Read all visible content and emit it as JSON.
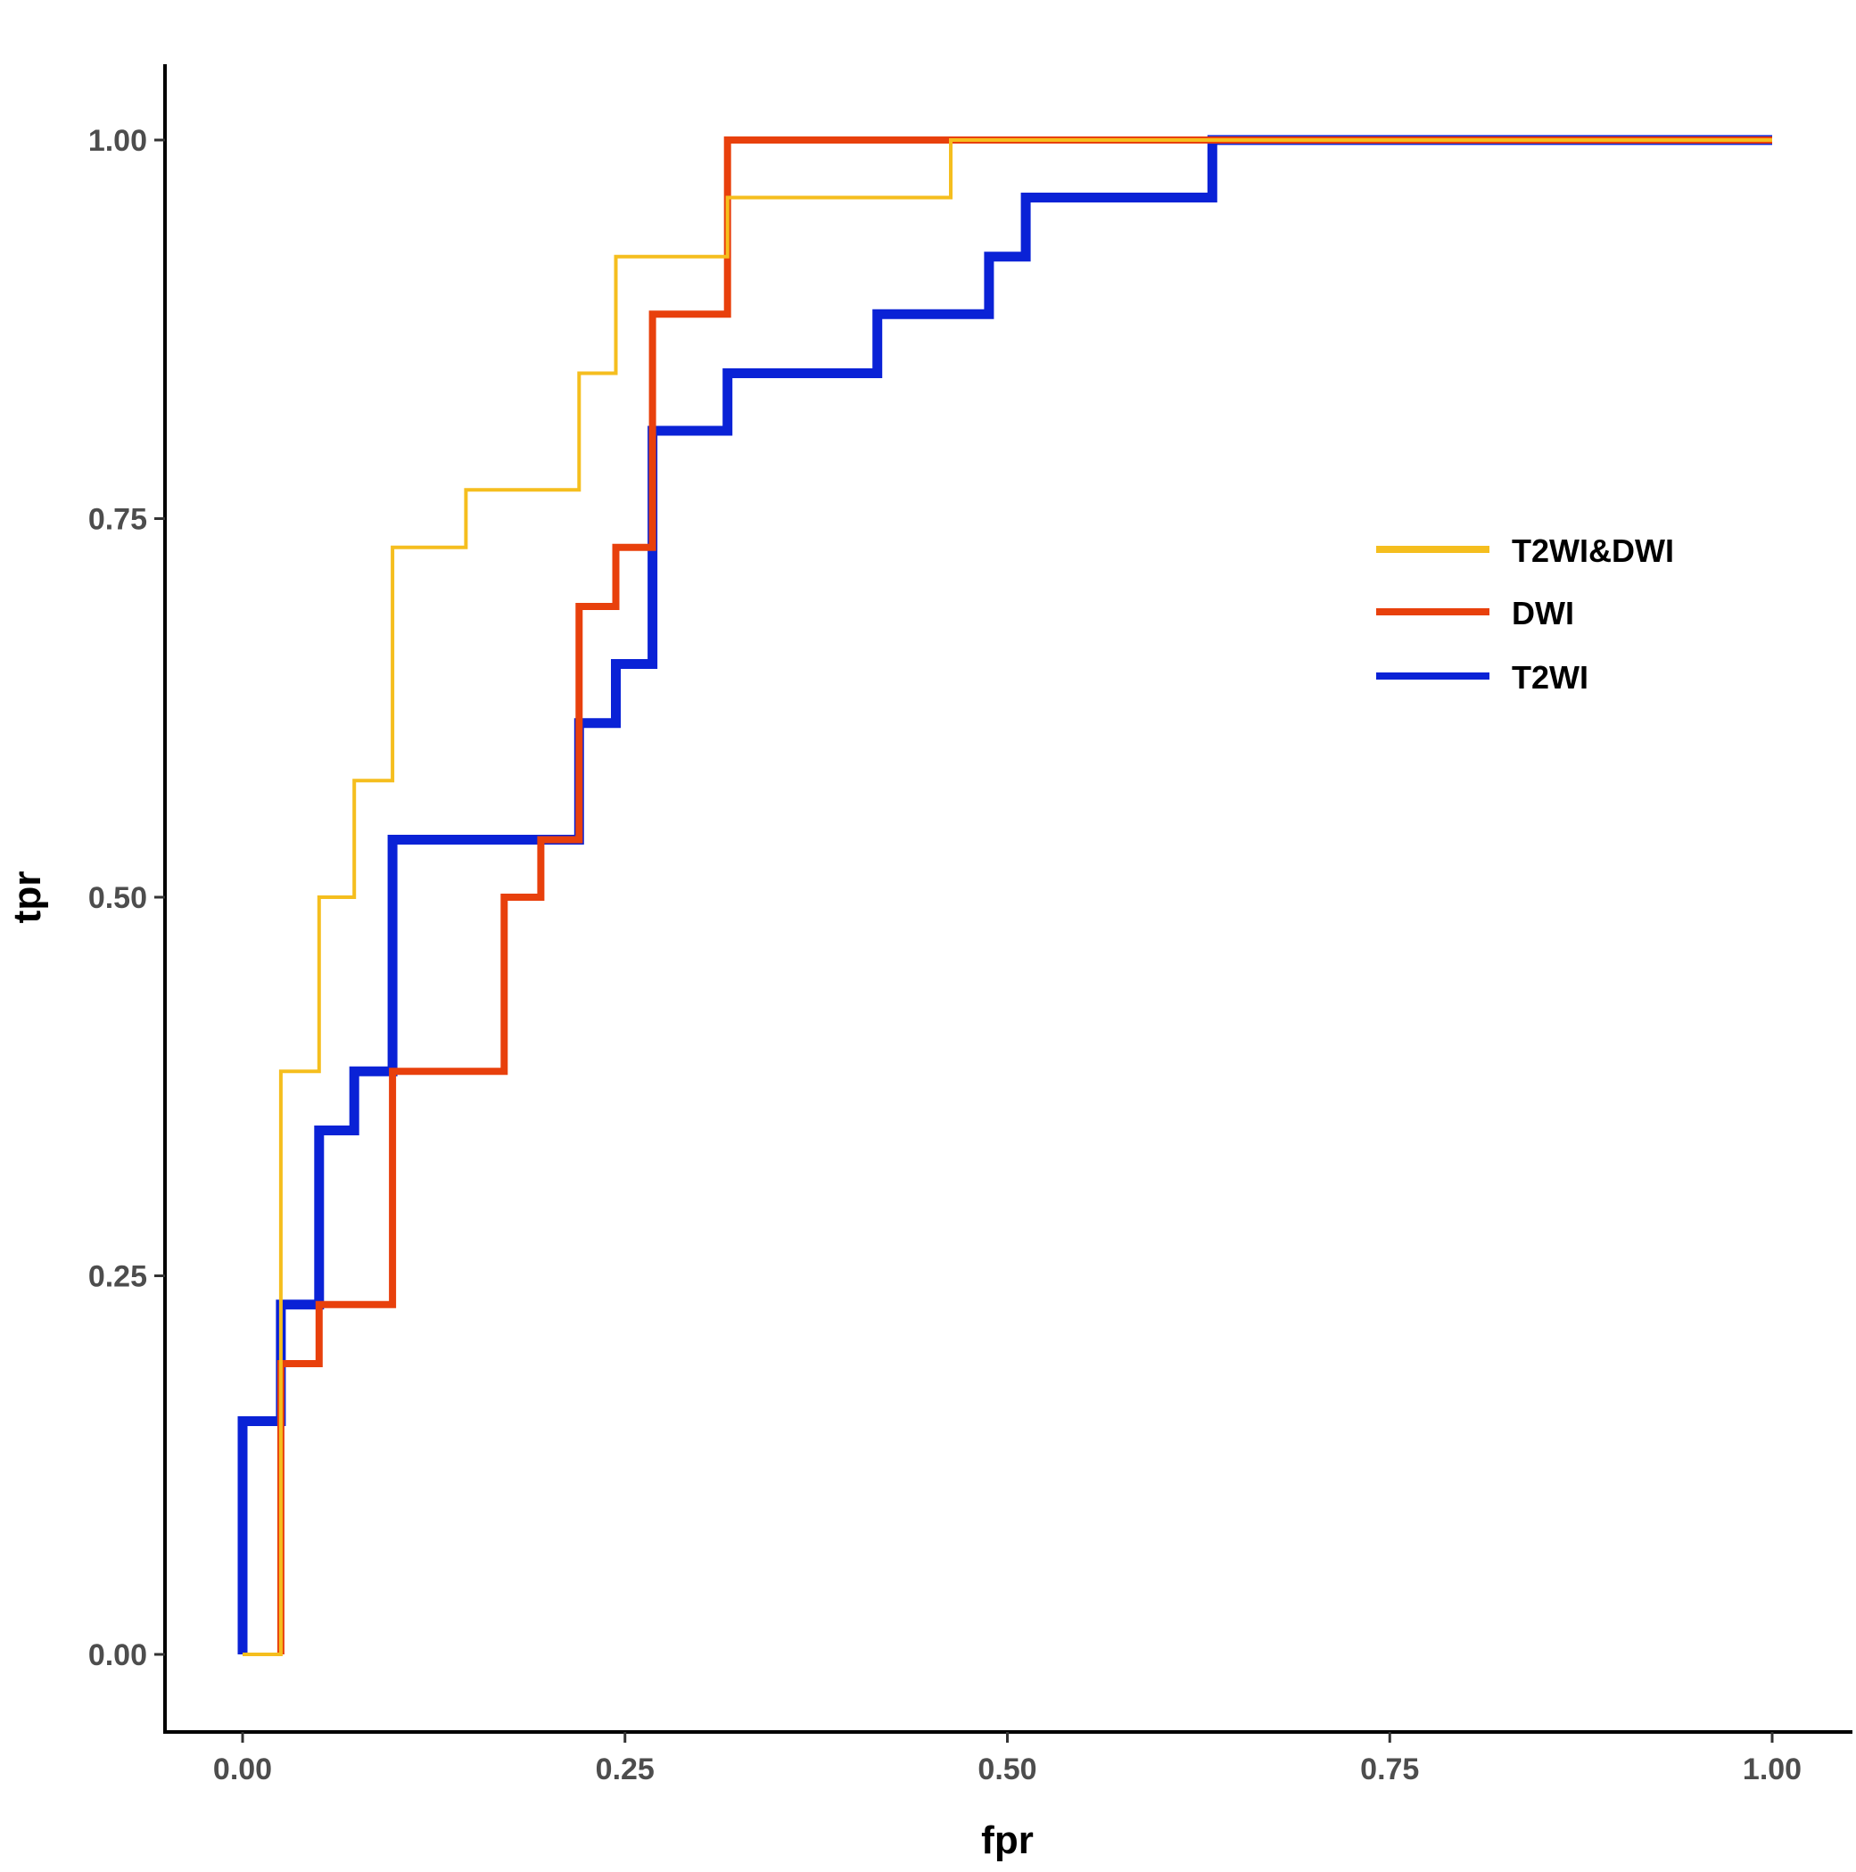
{
  "chart_data": {
    "type": "line",
    "title": "",
    "xlabel": "fpr",
    "ylabel": "tpr",
    "xlim": [
      -0.05,
      1.05
    ],
    "ylim": [
      -0.05,
      1.05
    ],
    "xticks": [
      0,
      0.25,
      0.5,
      0.75,
      1
    ],
    "yticks": [
      0,
      0.25,
      0.5,
      0.75,
      1
    ],
    "xtick_labels": [
      "0.00",
      "0.25",
      "0.50",
      "0.75",
      "1.00"
    ],
    "ytick_labels": [
      "0.00",
      "0.25",
      "0.50",
      "0.75",
      "1.00"
    ],
    "grid": false,
    "legend_position": "right",
    "series": [
      {
        "name": "T2WI&DWI",
        "color": "#F5BE1E",
        "x": [
          0,
          0.025,
          0.025,
          0.05,
          0.05,
          0.073,
          0.073,
          0.098,
          0.098,
          0.146,
          0.146,
          0.22,
          0.22,
          0.244,
          0.244,
          0.317,
          0.317,
          0.463,
          0.463,
          1
        ],
        "y": [
          0,
          0,
          0.385,
          0.385,
          0.5,
          0.5,
          0.577,
          0.577,
          0.731,
          0.731,
          0.769,
          0.769,
          0.846,
          0.846,
          0.923,
          0.923,
          0.962,
          0.962,
          1,
          1
        ]
      },
      {
        "name": "DWI",
        "color": "#E8400C",
        "x": [
          0.025,
          0.025,
          0.05,
          0.05,
          0.098,
          0.098,
          0.171,
          0.171,
          0.195,
          0.195,
          0.22,
          0.22,
          0.244,
          0.244,
          0.268,
          0.268,
          0.317,
          0.317,
          1
        ],
        "y": [
          0,
          0.192,
          0.192,
          0.231,
          0.231,
          0.385,
          0.385,
          0.5,
          0.5,
          0.538,
          0.538,
          0.692,
          0.692,
          0.731,
          0.731,
          0.885,
          0.885,
          1,
          1
        ]
      },
      {
        "name": "T2WI",
        "color": "#0A22D6",
        "x": [
          0,
          0,
          0.025,
          0.025,
          0.05,
          0.05,
          0.073,
          0.073,
          0.098,
          0.098,
          0.22,
          0.22,
          0.244,
          0.244,
          0.268,
          0.268,
          0.317,
          0.317,
          0.415,
          0.415,
          0.488,
          0.488,
          0.512,
          0.512,
          0.634,
          0.634,
          1
        ],
        "y": [
          0,
          0.154,
          0.154,
          0.231,
          0.231,
          0.346,
          0.346,
          0.385,
          0.385,
          0.538,
          0.538,
          0.615,
          0.615,
          0.654,
          0.654,
          0.808,
          0.808,
          0.846,
          0.846,
          0.885,
          0.885,
          0.923,
          0.923,
          0.962,
          0.962,
          1,
          1
        ]
      }
    ]
  }
}
